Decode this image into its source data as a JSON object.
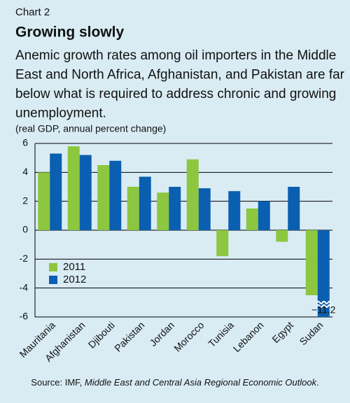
{
  "chart_data": {
    "type": "bar",
    "label": "Chart 2",
    "title": "Growing slowly",
    "subtitle": [
      "Anemic growth rates among oil importers in the Middle",
      "East and North Africa, Afghanistan, and Pakistan are far",
      "below what is required to address chronic and growing",
      "unemployment."
    ],
    "y_label": "(real GDP, annual percent change)",
    "categories": [
      "Mauritania",
      "Afghanistan",
      "Djibouti",
      "Pakistan",
      "Jordan",
      "Morocco",
      "Tunisia",
      "Lebanon",
      "Egypt",
      "Sudan"
    ],
    "series": [
      {
        "name": "2011",
        "color": "#8dc63f",
        "values": [
          4.0,
          5.8,
          4.5,
          3.0,
          2.6,
          4.9,
          -1.8,
          1.5,
          -0.8,
          -4.5
        ]
      },
      {
        "name": "2012",
        "color": "#0b5fb0",
        "values": [
          5.3,
          5.2,
          4.8,
          3.7,
          3.0,
          2.9,
          2.7,
          2.0,
          3.0,
          -11.2
        ],
        "value_labels": [
          null,
          null,
          null,
          null,
          null,
          null,
          null,
          null,
          null,
          "−11.2"
        ]
      }
    ],
    "ylim": [
      -6,
      6
    ],
    "yticks": [
      -6,
      -4,
      -2,
      0,
      2,
      4,
      6
    ],
    "grid": true,
    "source": {
      "prefix": "Source: IMF, ",
      "title": "Middle East and Central Asia Regional Economic Outlook",
      "suffix": "."
    }
  }
}
